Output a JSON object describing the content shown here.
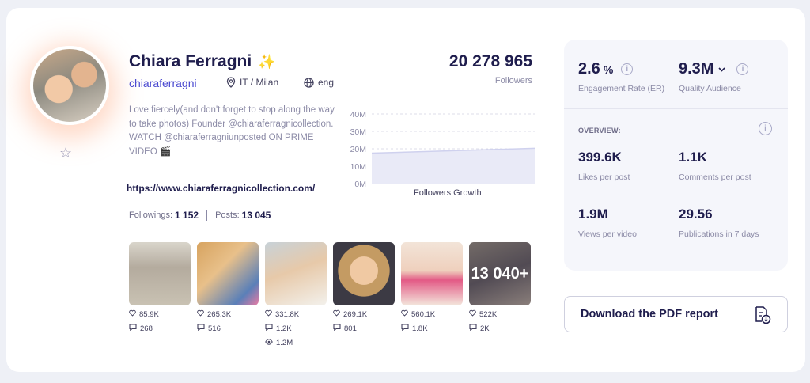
{
  "profile": {
    "name": "Chiara Ferragni",
    "emoji": "✨",
    "handle": "chiaraferragni",
    "location": "IT / Milan",
    "language": "eng",
    "bio": "Love fiercely(and don't forget to stop along the way to take photos) Founder @chiaraferragnicollection. WATCH @chiaraferragniunposted ON PRIME VIDEO 🎬",
    "url": "https://www.chiaraferragnicollection.com/",
    "followings_label": "Followings:",
    "followings": "1 152",
    "posts_label": "Posts:",
    "posts": "13 045"
  },
  "followers": {
    "count": "20 278 965",
    "label": "Followers"
  },
  "chart_data": {
    "type": "area",
    "title": "Followers Growth",
    "y_ticks": [
      "40M",
      "30M",
      "20M",
      "10M",
      "0M"
    ],
    "ylim": [
      0,
      40
    ],
    "x": [
      0,
      1
    ],
    "series": [
      {
        "values": [
          17.5,
          20.3
        ]
      }
    ],
    "grid": true
  },
  "posts": [
    {
      "likes": "85.9K",
      "comments": "268"
    },
    {
      "likes": "265.3K",
      "comments": "516"
    },
    {
      "likes": "331.8K",
      "comments": "1.2K",
      "views": "1.2M"
    },
    {
      "likes": "269.1K",
      "comments": "801"
    },
    {
      "likes": "560.1K",
      "comments": "1.8K"
    },
    {
      "likes": "522K",
      "comments": "2K",
      "more": "13 040+"
    }
  ],
  "stats": {
    "er_value": "2.6",
    "er_unit": "%",
    "er_label": "Engagement Rate (ER)",
    "qa_value": "9.3M",
    "qa_label": "Quality Audience",
    "overview_label": "OVERVIEW:",
    "likes_value": "399.6K",
    "likes_label": "Likes per post",
    "comments_value": "1.1K",
    "comments_label": "Comments per post",
    "views_value": "1.9M",
    "views_label": "Views per video",
    "pubs_value": "29.56",
    "pubs_label": "Publications in 7 days"
  },
  "actions": {
    "download_label": "Download the PDF report"
  },
  "icons": [
    "star-icon",
    "location-pin-icon",
    "globe-icon",
    "heart-icon",
    "comment-icon",
    "eye-icon",
    "info-icon",
    "chevron-down-icon",
    "pdf-download-icon"
  ]
}
